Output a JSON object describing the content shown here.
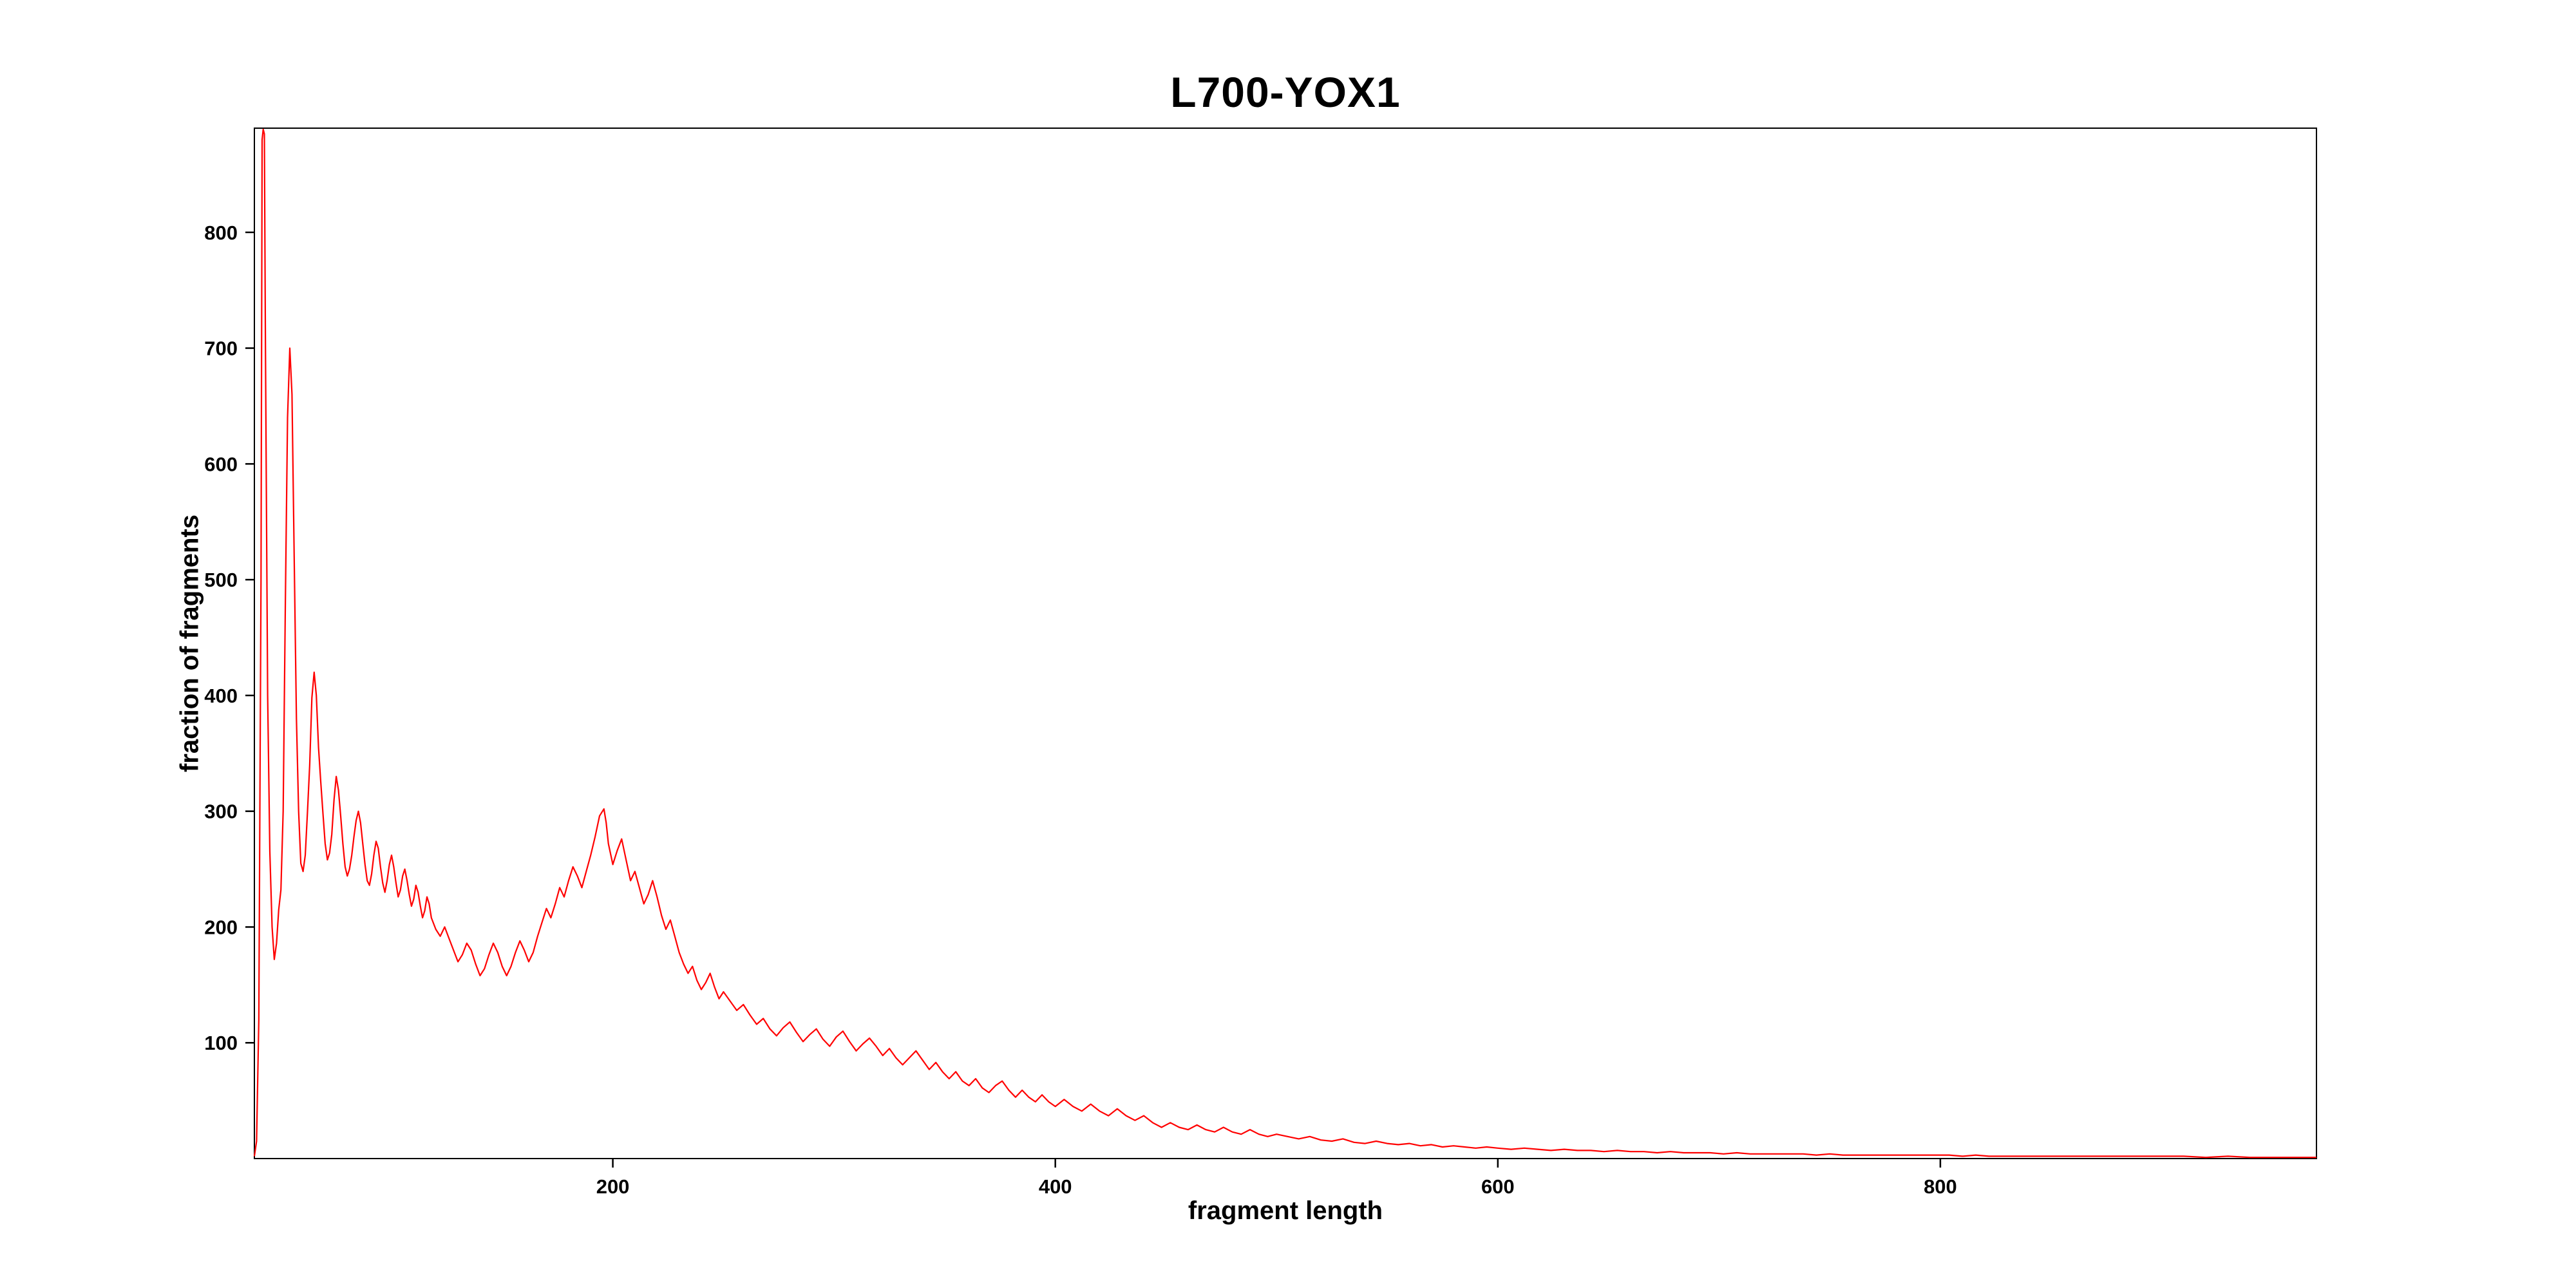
{
  "chart_data": {
    "type": "line",
    "title": "L700-YOX1",
    "xlabel": "fragment length",
    "ylabel": "fraction of fragments",
    "xlim": [
      38,
      970
    ],
    "ylim": [
      0,
      890
    ],
    "xticks": [
      200,
      400,
      600,
      800
    ],
    "yticks": [
      100,
      200,
      300,
      400,
      500,
      600,
      700,
      800
    ],
    "grid": false,
    "legend": null,
    "line_color": "#ff0000",
    "background": "#ffffff",
    "points": [
      [
        38,
        2
      ],
      [
        39,
        15
      ],
      [
        40,
        120
      ],
      [
        41,
        500
      ],
      [
        41.5,
        880
      ],
      [
        42,
        889
      ],
      [
        42.5,
        885
      ],
      [
        43,
        700
      ],
      [
        44,
        400
      ],
      [
        45,
        265
      ],
      [
        46,
        200
      ],
      [
        47,
        172
      ],
      [
        48,
        186
      ],
      [
        49,
        215
      ],
      [
        50,
        232
      ],
      [
        51,
        300
      ],
      [
        52,
        480
      ],
      [
        53,
        640
      ],
      [
        54,
        700
      ],
      [
        55,
        660
      ],
      [
        56,
        520
      ],
      [
        57,
        380
      ],
      [
        58,
        300
      ],
      [
        59,
        255
      ],
      [
        60,
        248
      ],
      [
        61,
        262
      ],
      [
        62,
        300
      ],
      [
        63,
        340
      ],
      [
        64,
        398
      ],
      [
        65,
        420
      ],
      [
        66,
        400
      ],
      [
        67,
        355
      ],
      [
        68,
        325
      ],
      [
        69,
        298
      ],
      [
        70,
        272
      ],
      [
        71,
        258
      ],
      [
        72,
        264
      ],
      [
        73,
        280
      ],
      [
        74,
        310
      ],
      [
        75,
        330
      ],
      [
        76,
        318
      ],
      [
        77,
        296
      ],
      [
        78,
        272
      ],
      [
        79,
        252
      ],
      [
        80,
        244
      ],
      [
        81,
        250
      ],
      [
        82,
        262
      ],
      [
        83,
        278
      ],
      [
        84,
        292
      ],
      [
        85,
        300
      ],
      [
        86,
        290
      ],
      [
        87,
        272
      ],
      [
        88,
        254
      ],
      [
        89,
        240
      ],
      [
        90,
        236
      ],
      [
        91,
        246
      ],
      [
        92,
        262
      ],
      [
        93,
        274
      ],
      [
        94,
        268
      ],
      [
        95,
        252
      ],
      [
        96,
        238
      ],
      [
        97,
        230
      ],
      [
        98,
        240
      ],
      [
        99,
        254
      ],
      [
        100,
        262
      ],
      [
        101,
        252
      ],
      [
        102,
        238
      ],
      [
        103,
        226
      ],
      [
        104,
        232
      ],
      [
        105,
        244
      ],
      [
        106,
        250
      ],
      [
        107,
        240
      ],
      [
        108,
        228
      ],
      [
        109,
        218
      ],
      [
        110,
        224
      ],
      [
        111,
        236
      ],
      [
        112,
        230
      ],
      [
        113,
        218
      ],
      [
        114,
        208
      ],
      [
        115,
        214
      ],
      [
        116,
        226
      ],
      [
        117,
        220
      ],
      [
        118,
        208
      ],
      [
        120,
        198
      ],
      [
        122,
        192
      ],
      [
        124,
        200
      ],
      [
        126,
        190
      ],
      [
        128,
        180
      ],
      [
        130,
        170
      ],
      [
        132,
        176
      ],
      [
        134,
        186
      ],
      [
        136,
        180
      ],
      [
        138,
        168
      ],
      [
        140,
        158
      ],
      [
        142,
        164
      ],
      [
        144,
        176
      ],
      [
        146,
        186
      ],
      [
        148,
        178
      ],
      [
        150,
        166
      ],
      [
        152,
        158
      ],
      [
        154,
        166
      ],
      [
        156,
        178
      ],
      [
        158,
        188
      ],
      [
        160,
        180
      ],
      [
        162,
        170
      ],
      [
        164,
        178
      ],
      [
        166,
        192
      ],
      [
        168,
        204
      ],
      [
        170,
        216
      ],
      [
        172,
        208
      ],
      [
        174,
        220
      ],
      [
        176,
        234
      ],
      [
        178,
        226
      ],
      [
        180,
        240
      ],
      [
        182,
        252
      ],
      [
        184,
        244
      ],
      [
        186,
        234
      ],
      [
        188,
        248
      ],
      [
        190,
        262
      ],
      [
        192,
        278
      ],
      [
        194,
        296
      ],
      [
        196,
        302
      ],
      [
        197,
        290
      ],
      [
        198,
        272
      ],
      [
        200,
        254
      ],
      [
        202,
        266
      ],
      [
        204,
        276
      ],
      [
        206,
        258
      ],
      [
        208,
        240
      ],
      [
        210,
        248
      ],
      [
        212,
        234
      ],
      [
        214,
        220
      ],
      [
        216,
        228
      ],
      [
        218,
        240
      ],
      [
        220,
        226
      ],
      [
        222,
        210
      ],
      [
        224,
        198
      ],
      [
        226,
        206
      ],
      [
        228,
        192
      ],
      [
        230,
        178
      ],
      [
        232,
        168
      ],
      [
        234,
        160
      ],
      [
        236,
        166
      ],
      [
        238,
        154
      ],
      [
        240,
        146
      ],
      [
        242,
        152
      ],
      [
        244,
        160
      ],
      [
        246,
        148
      ],
      [
        248,
        138
      ],
      [
        250,
        144
      ],
      [
        253,
        136
      ],
      [
        256,
        128
      ],
      [
        259,
        133
      ],
      [
        262,
        124
      ],
      [
        265,
        116
      ],
      [
        268,
        121
      ],
      [
        271,
        112
      ],
      [
        274,
        106
      ],
      [
        277,
        113
      ],
      [
        280,
        118
      ],
      [
        283,
        109
      ],
      [
        286,
        101
      ],
      [
        289,
        107
      ],
      [
        292,
        112
      ],
      [
        295,
        103
      ],
      [
        298,
        97
      ],
      [
        301,
        105
      ],
      [
        304,
        110
      ],
      [
        307,
        101
      ],
      [
        310,
        93
      ],
      [
        313,
        99
      ],
      [
        316,
        104
      ],
      [
        319,
        97
      ],
      [
        322,
        89
      ],
      [
        325,
        95
      ],
      [
        328,
        87
      ],
      [
        331,
        81
      ],
      [
        334,
        87
      ],
      [
        337,
        93
      ],
      [
        340,
        85
      ],
      [
        343,
        77
      ],
      [
        346,
        83
      ],
      [
        349,
        75
      ],
      [
        352,
        69
      ],
      [
        355,
        75
      ],
      [
        358,
        67
      ],
      [
        361,
        63
      ],
      [
        364,
        69
      ],
      [
        367,
        61
      ],
      [
        370,
        57
      ],
      [
        373,
        63
      ],
      [
        376,
        67
      ],
      [
        379,
        59
      ],
      [
        382,
        53
      ],
      [
        385,
        59
      ],
      [
        388,
        53
      ],
      [
        391,
        49
      ],
      [
        394,
        55
      ],
      [
        397,
        49
      ],
      [
        400,
        45
      ],
      [
        404,
        51
      ],
      [
        408,
        45
      ],
      [
        412,
        41
      ],
      [
        416,
        47
      ],
      [
        420,
        41
      ],
      [
        424,
        37
      ],
      [
        428,
        43
      ],
      [
        432,
        37
      ],
      [
        436,
        33
      ],
      [
        440,
        37
      ],
      [
        444,
        31
      ],
      [
        448,
        27
      ],
      [
        452,
        31
      ],
      [
        456,
        27
      ],
      [
        460,
        25
      ],
      [
        464,
        29
      ],
      [
        468,
        25
      ],
      [
        472,
        23
      ],
      [
        476,
        27
      ],
      [
        480,
        23
      ],
      [
        484,
        21
      ],
      [
        488,
        25
      ],
      [
        492,
        21
      ],
      [
        496,
        19
      ],
      [
        500,
        21
      ],
      [
        505,
        19
      ],
      [
        510,
        17
      ],
      [
        515,
        19
      ],
      [
        520,
        16
      ],
      [
        525,
        15
      ],
      [
        530,
        17
      ],
      [
        535,
        14
      ],
      [
        540,
        13
      ],
      [
        545,
        15
      ],
      [
        550,
        13
      ],
      [
        555,
        12
      ],
      [
        560,
        13
      ],
      [
        565,
        11
      ],
      [
        570,
        12
      ],
      [
        575,
        10
      ],
      [
        580,
        11
      ],
      [
        585,
        10
      ],
      [
        590,
        9
      ],
      [
        595,
        10
      ],
      [
        600,
        9
      ],
      [
        606,
        8
      ],
      [
        612,
        9
      ],
      [
        618,
        8
      ],
      [
        624,
        7
      ],
      [
        630,
        8
      ],
      [
        636,
        7
      ],
      [
        642,
        7
      ],
      [
        648,
        6
      ],
      [
        654,
        7
      ],
      [
        660,
        6
      ],
      [
        666,
        6
      ],
      [
        672,
        5
      ],
      [
        678,
        6
      ],
      [
        684,
        5
      ],
      [
        690,
        5
      ],
      [
        696,
        5
      ],
      [
        702,
        4
      ],
      [
        708,
        5
      ],
      [
        714,
        4
      ],
      [
        720,
        4
      ],
      [
        726,
        4
      ],
      [
        732,
        4
      ],
      [
        738,
        4
      ],
      [
        744,
        3
      ],
      [
        750,
        4
      ],
      [
        756,
        3
      ],
      [
        762,
        3
      ],
      [
        768,
        3
      ],
      [
        774,
        3
      ],
      [
        780,
        3
      ],
      [
        786,
        3
      ],
      [
        792,
        3
      ],
      [
        798,
        3
      ],
      [
        804,
        3
      ],
      [
        810,
        2
      ],
      [
        816,
        3
      ],
      [
        822,
        2
      ],
      [
        828,
        2
      ],
      [
        834,
        2
      ],
      [
        840,
        2
      ],
      [
        846,
        2
      ],
      [
        852,
        2
      ],
      [
        858,
        2
      ],
      [
        864,
        2
      ],
      [
        870,
        2
      ],
      [
        876,
        2
      ],
      [
        882,
        2
      ],
      [
        888,
        2
      ],
      [
        894,
        2
      ],
      [
        900,
        2
      ],
      [
        910,
        2
      ],
      [
        920,
        1
      ],
      [
        930,
        2
      ],
      [
        940,
        1
      ],
      [
        950,
        1
      ],
      [
        960,
        1
      ],
      [
        970,
        1
      ]
    ]
  }
}
